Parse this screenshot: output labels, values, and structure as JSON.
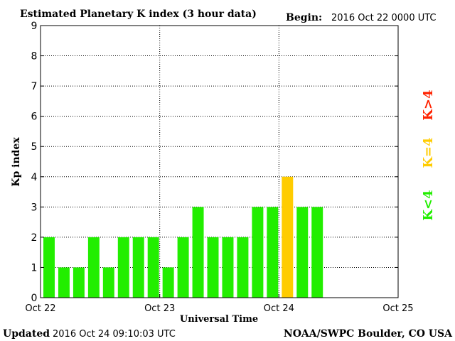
{
  "header": {
    "title": "Estimated Planetary K index (3 hour data)",
    "begin_label": "Begin:",
    "begin_value": "2016 Oct 22 0000 UTC"
  },
  "footer": {
    "updated_label": "Updated",
    "updated_value": "2016 Oct 24 09:10:03 UTC",
    "source": "NOAA/SWPC Boulder, CO USA"
  },
  "legend": {
    "below": "K<4",
    "equal": "K=4",
    "above": "K>4"
  },
  "colors": {
    "below": "#22ee00",
    "equal": "#ffcc00",
    "above": "#ff2200",
    "grid": "#000000"
  },
  "chart_data": {
    "type": "bar",
    "title": "Estimated Planetary K index (3 hour data)",
    "xlabel": "Universal Time",
    "ylabel": "Kp index",
    "ylim": [
      0,
      9
    ],
    "yticks": [
      0,
      1,
      2,
      3,
      4,
      5,
      6,
      7,
      8,
      9
    ],
    "xticks": [
      "Oct 22",
      "Oct 23",
      "Oct 24",
      "Oct 25"
    ],
    "slots_total": 24,
    "grid": "dotted, at each day and each integer Kp",
    "values": [
      2,
      1,
      1,
      2,
      1,
      2,
      2,
      2,
      1,
      2,
      3,
      2,
      2,
      2,
      3,
      3,
      4,
      3,
      3
    ]
  }
}
